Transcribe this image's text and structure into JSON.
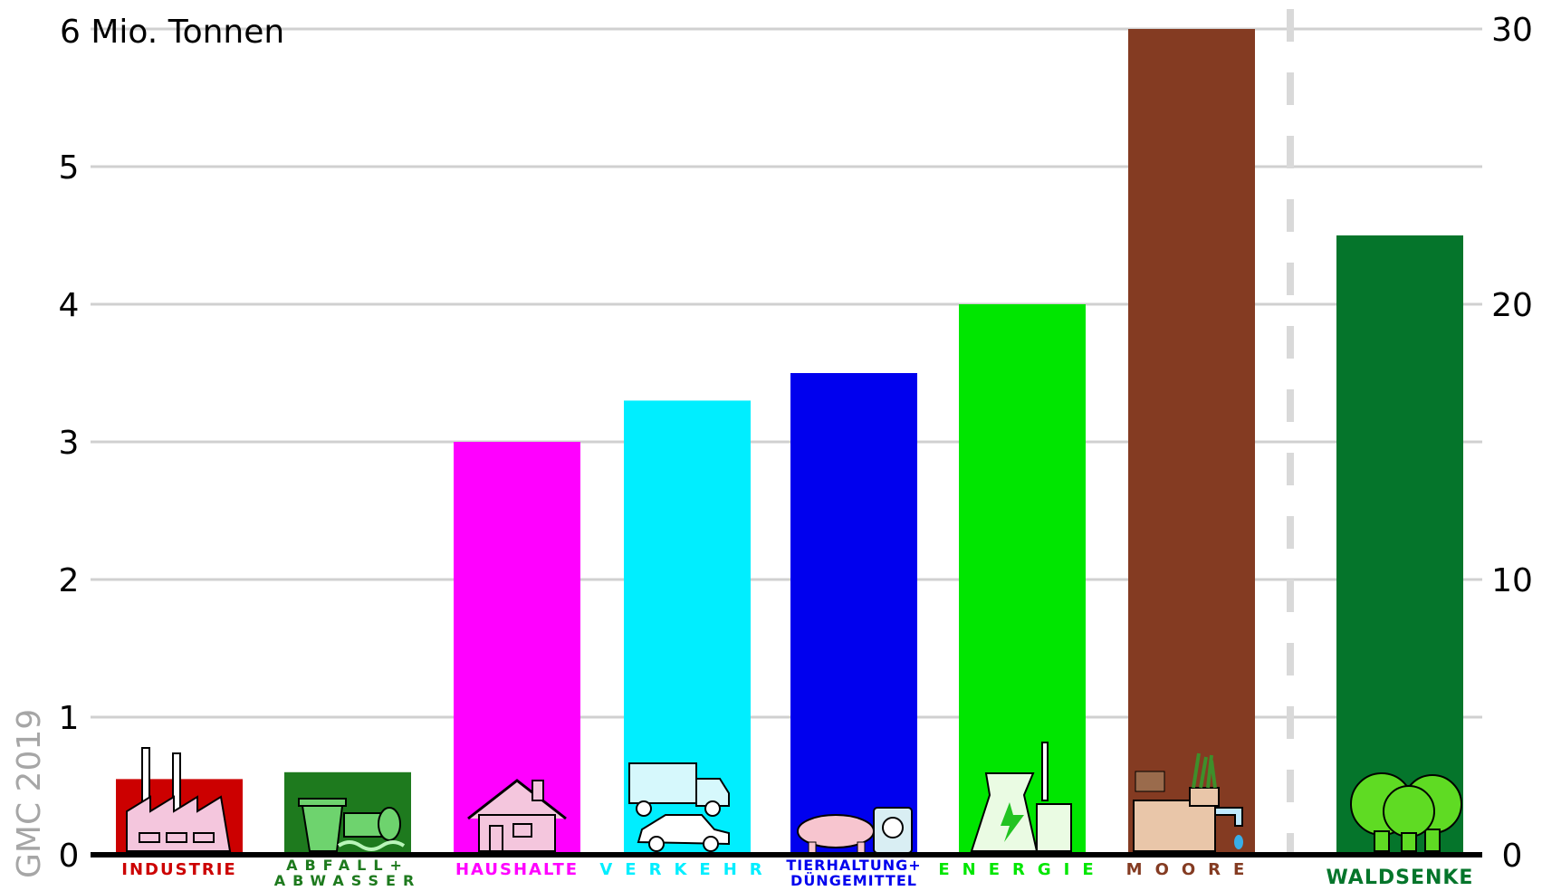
{
  "watermark": "GMC 2019",
  "chart_data": {
    "type": "bar",
    "unit_label": "6 Mio. Tonnen",
    "left_axis": {
      "ticks": [
        "0",
        "1",
        "2",
        "3",
        "4",
        "5"
      ],
      "ylim": [
        0,
        6
      ]
    },
    "right_axis": {
      "ticks": [
        "0",
        "10",
        "20",
        "30"
      ],
      "ylim": [
        0,
        30
      ]
    },
    "grid": true,
    "series": [
      {
        "axis": "left",
        "categories": [
          [
            "INDUSTRIE"
          ],
          [
            "ABFALL+",
            "ABWASSER"
          ],
          [
            "HAUSHALTE"
          ],
          [
            "VERKEHR"
          ],
          [
            "TIERHALTUNG+",
            "DÜNGEMITTEL"
          ],
          [
            "ENERGIE"
          ],
          [
            "MOORE"
          ]
        ],
        "values": [
          0.55,
          0.6,
          3.0,
          3.3,
          3.5,
          4.0,
          6.0
        ],
        "colors": [
          "#cc0000",
          "#1e7a1e",
          "#ff00ff",
          "#00eeff",
          "#0000ee",
          "#00e600",
          "#843b22"
        ],
        "label_colors": [
          "#cc0000",
          "#1e7a1e",
          "#ff00ff",
          "#00eeff",
          "#0000ee",
          "#00e600",
          "#843b22"
        ]
      },
      {
        "axis": "right",
        "categories": [
          [
            "WALDSENKE"
          ]
        ],
        "values": [
          22.5
        ],
        "colors": [
          "#05752b"
        ],
        "label_colors": [
          "#05752b"
        ]
      }
    ],
    "icons": [
      "factory-icon",
      "trash-and-pipe-icon",
      "house-icon",
      "truck-and-car-icon",
      "pig-and-fertilizer-icon",
      "power-plant-icon",
      "bog-icon",
      "forest-icon"
    ]
  }
}
